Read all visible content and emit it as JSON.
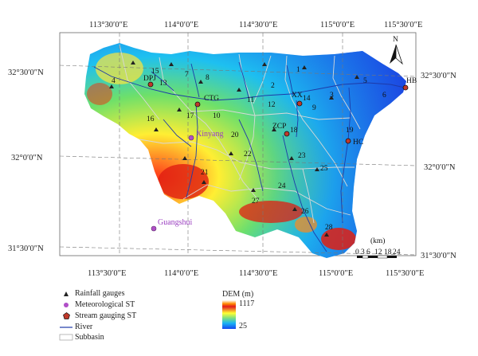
{
  "map": {
    "top_longitudes": [
      "113°30′0″E",
      "114°0′0″E",
      "114°30′0″E",
      "115°0′0″E",
      "115°30′0″E"
    ],
    "bottom_longitudes": [
      "113°30′0″E",
      "114°0′0″E",
      "114°30′0″E",
      "115°0′0″E",
      "115°30′0″E"
    ],
    "left_latitudes": [
      "32°30′0″N",
      "32°0′0″N",
      "31°30′0″N"
    ],
    "right_latitudes": [
      "32°30′0″N",
      "32°0′0″N",
      "31°30′0″N"
    ],
    "north_arrow": "N",
    "subbasin_numbers": [
      "1",
      "2",
      "3",
      "4",
      "5",
      "6",
      "7",
      "8",
      "9",
      "10",
      "11",
      "12",
      "13",
      "14",
      "15",
      "16",
      "17",
      "18",
      "19",
      "20",
      "21",
      "22",
      "23",
      "24",
      "25",
      "26",
      "27",
      "28"
    ],
    "stream_gauges": [
      "DPJ",
      "CTG",
      "XX",
      "ZCP",
      "HC",
      "HB"
    ],
    "meteorological_stations": [
      "Xinyang",
      "Guangshui"
    ],
    "scale": {
      "unit": "(km)",
      "ticks": [
        "0",
        "3",
        "6",
        "12",
        "18",
        "24"
      ]
    },
    "colors": {
      "stream_gauge": "#c0392b",
      "meteorological": "#9b59b6",
      "river": "#1e3aa8",
      "subbasin": "#d8d8d8"
    }
  },
  "legend": {
    "rainfall_gauges": "Rainfall gauges",
    "meteorological_st": "Meteorological ST",
    "stream_gauging_st": "Stream gauging ST",
    "river": "River",
    "subbasin": "Subbasin"
  },
  "dem": {
    "title": "DEM (m)",
    "max": "1117",
    "min": "25"
  }
}
